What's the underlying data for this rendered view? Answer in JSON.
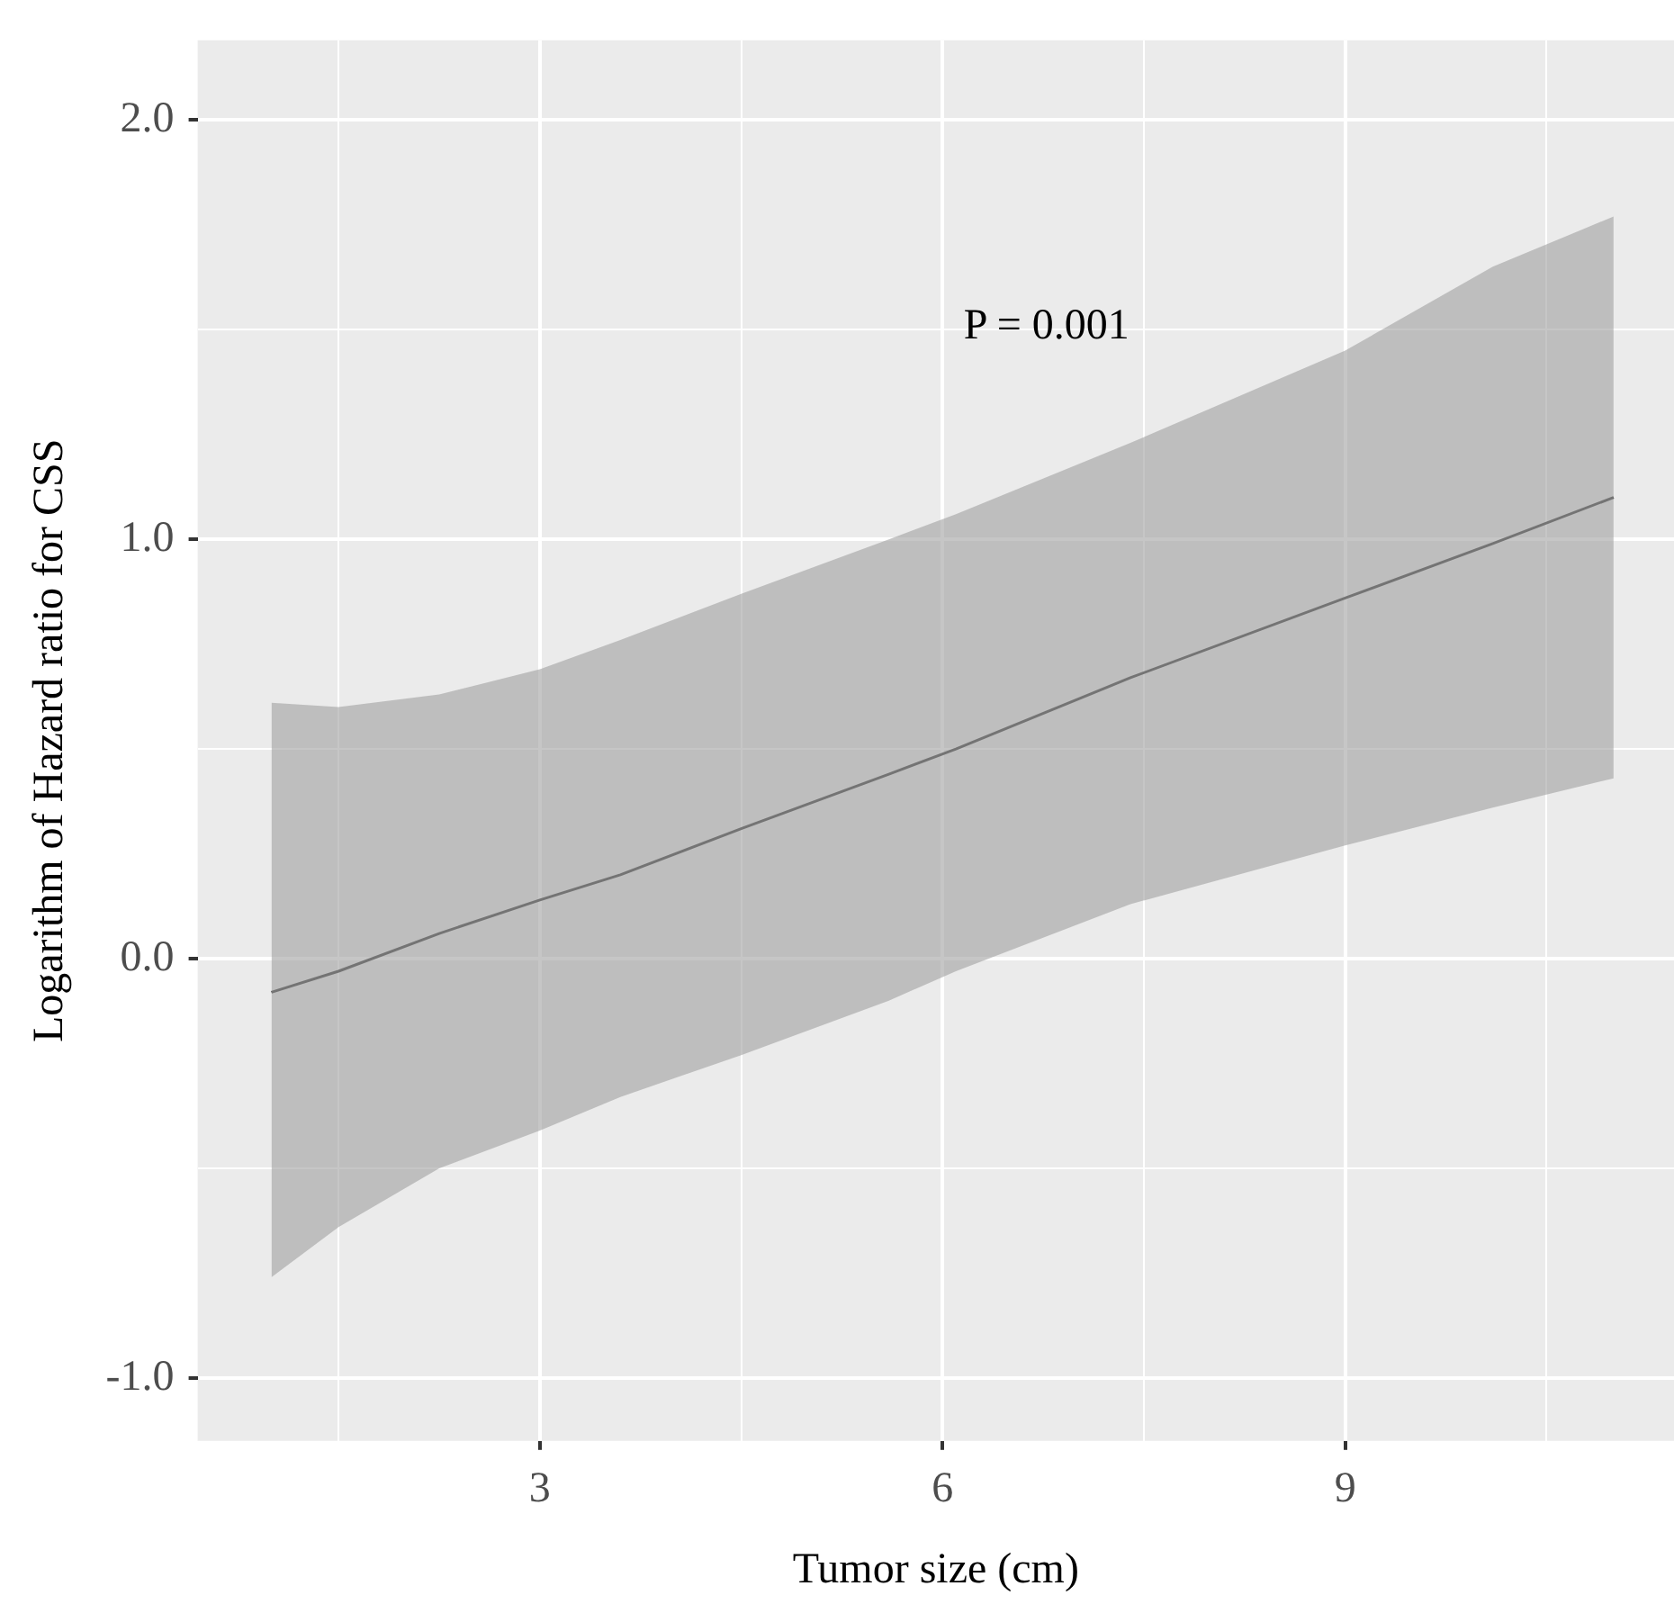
{
  "chart_data": {
    "type": "line",
    "xlabel": "Tumor size (cm)",
    "ylabel": "Logarithm of Hazard ratio for CSS",
    "annotations": [
      "P = 0.001"
    ],
    "x": [
      1,
      1.5,
      2.25,
      3,
      3.6,
      4.5,
      5.6,
      6.1,
      7.4,
      9,
      10.1,
      11
    ],
    "series": [
      {
        "color": "#333333",
        "values": [
          -0.08,
          -0.03,
          0.06,
          0.14,
          0.2,
          0.31,
          0.44,
          0.5,
          0.67,
          0.86,
          0.99,
          1.1
        ],
        "lower": [
          -0.76,
          -0.64,
          -0.5,
          -0.41,
          -0.33,
          -0.23,
          -0.1,
          -0.03,
          0.13,
          0.27,
          0.36,
          0.43
        ],
        "upper": [
          0.61,
          0.6,
          0.63,
          0.69,
          0.76,
          0.87,
          1.0,
          1.06,
          1.23,
          1.45,
          1.65,
          1.77
        ]
      }
    ],
    "xlim": [
      0.45,
      11.45
    ],
    "ylim": [
      -1.15,
      2.19
    ],
    "xticks": [
      {
        "value": 1.5,
        "label": null
      },
      3,
      {
        "value": 4.5,
        "label": null
      },
      6,
      {
        "value": 7.5,
        "label": null
      },
      9,
      {
        "value": 10.5,
        "label": null
      }
    ],
    "yticks": [
      {
        "value": -1,
        "label": "-1.0"
      },
      {
        "value": -0.5,
        "label": null
      },
      {
        "value": 0,
        "label": "0.0"
      },
      {
        "value": 0.5,
        "label": null
      },
      {
        "value": 1,
        "label": "1.0"
      },
      {
        "value": 1.5,
        "label": null
      },
      {
        "value": 2,
        "label": "2.0"
      }
    ],
    "grid": true,
    "marker": "none",
    "line_style": "solid"
  }
}
